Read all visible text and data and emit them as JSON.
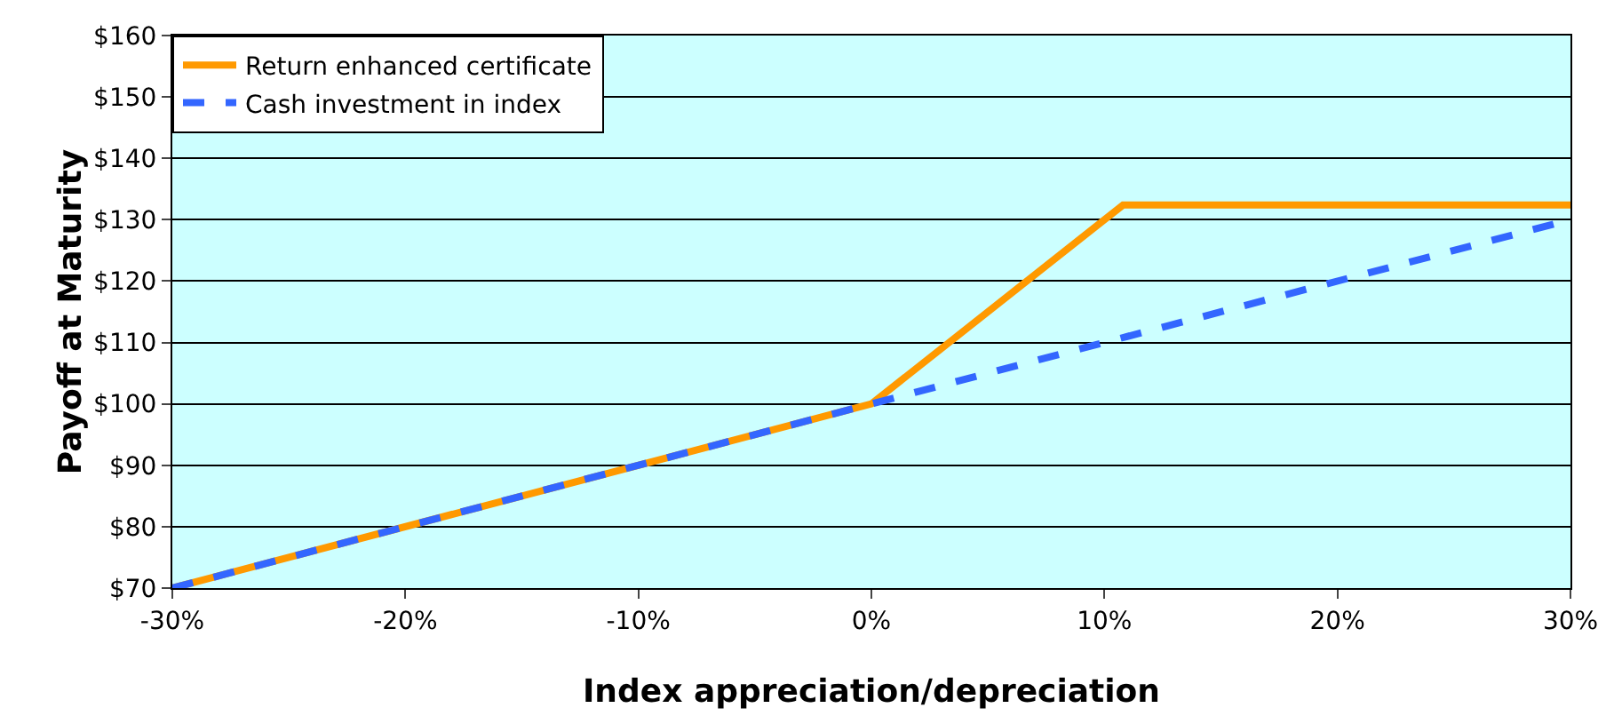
{
  "chart_data": {
    "type": "line",
    "xlabel": "Index appreciation/depreciation",
    "ylabel": "Payoff at Maturity",
    "series": [
      {
        "name": "Return enhanced certificate",
        "color": "#ff9900",
        "x": [
          -30,
          0,
          10.8,
          30
        ],
        "values": [
          70,
          100,
          132.4,
          132.4
        ],
        "line_style": "solid"
      },
      {
        "name": "Cash investment in index",
        "color": "#3366ff",
        "x": [
          -30,
          30
        ],
        "values": [
          70,
          130
        ],
        "line_style": "dashed"
      }
    ],
    "xlim": [
      -30,
      30
    ],
    "xticks": [
      {
        "value": -30,
        "label": "-30%"
      },
      {
        "value": -20,
        "label": "-20%"
      },
      {
        "value": -10,
        "label": "-10%"
      },
      {
        "value": 0,
        "label": "0%"
      },
      {
        "value": 10,
        "label": "10%"
      },
      {
        "value": 20,
        "label": "20%"
      },
      {
        "value": 30,
        "label": "30%"
      }
    ],
    "ylim": [
      70,
      160
    ],
    "yticks": [
      {
        "value": 70,
        "label": "$70"
      },
      {
        "value": 80,
        "label": "$80"
      },
      {
        "value": 90,
        "label": "$90"
      },
      {
        "value": 100,
        "label": "$100"
      },
      {
        "value": 110,
        "label": "$110"
      },
      {
        "value": 120,
        "label": "$120"
      },
      {
        "value": 130,
        "label": "$130"
      },
      {
        "value": 140,
        "label": "$140"
      },
      {
        "value": 150,
        "label": "$150"
      },
      {
        "value": 160,
        "label": "$160"
      }
    ],
    "grid": "y",
    "legend": "top left",
    "marker": "none"
  }
}
